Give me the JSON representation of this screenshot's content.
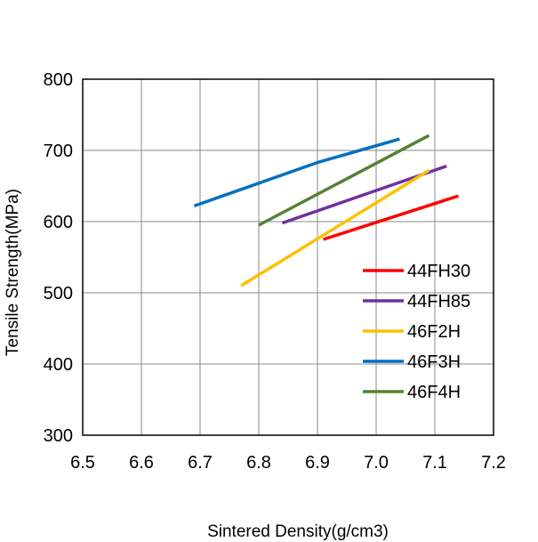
{
  "chart_data": {
    "type": "line",
    "xlabel": "Sintered Density(g/cm3)",
    "ylabel": "Tensile Strength(MPa)",
    "xlim": [
      6.5,
      7.2
    ],
    "ylim": [
      300,
      800
    ],
    "xticks": [
      "6.5",
      "6.6",
      "6.7",
      "6.8",
      "6.9",
      "7.0",
      "7.1",
      "7.2"
    ],
    "yticks": [
      "300",
      "400",
      "500",
      "600",
      "700",
      "800"
    ],
    "grid": true,
    "legend_position": "bottom-right",
    "series": [
      {
        "name": "44FH30",
        "color": "#ff0000",
        "x": [
          6.91,
          7.14
        ],
        "y": [
          575,
          636
        ]
      },
      {
        "name": "44FH85",
        "color": "#7030a0",
        "x": [
          6.84,
          7.12
        ],
        "y": [
          598,
          678
        ]
      },
      {
        "name": "46F2H",
        "color": "#ffc000",
        "x": [
          6.77,
          7.09
        ],
        "y": [
          510,
          672
        ]
      },
      {
        "name": "46F3H",
        "color": "#0070c0",
        "x": [
          6.69,
          6.9,
          7.04
        ],
        "y": [
          622,
          683,
          716
        ]
      },
      {
        "name": "46F4H",
        "color": "#548235",
        "x": [
          6.8,
          7.09
        ],
        "y": [
          595,
          721
        ]
      }
    ]
  }
}
